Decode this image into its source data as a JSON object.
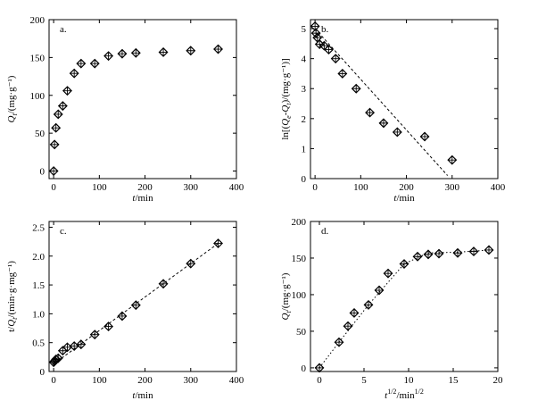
{
  "chart_data": [
    {
      "id": "a",
      "type": "scatter",
      "panel_label": "a.",
      "xlabel": "t/min",
      "ylabel": "Qt/(mg·g⁻¹)",
      "xlim": [
        -10,
        400
      ],
      "ylim": [
        -10,
        200
      ],
      "xticks": [
        0,
        100,
        200,
        300,
        400
      ],
      "yticks": [
        0,
        50,
        100,
        150,
        200
      ],
      "x": [
        0,
        2,
        5,
        10,
        20,
        30,
        45,
        60,
        90,
        120,
        150,
        180,
        240,
        300,
        360
      ],
      "y": [
        0,
        35,
        57,
        75,
        86,
        106,
        129,
        142,
        142,
        152,
        155,
        156,
        157,
        159,
        161
      ],
      "fit": null
    },
    {
      "id": "b",
      "type": "scatter",
      "panel_label": "b.",
      "xlabel": "t/min",
      "ylabel": "ln[(Qe-Qt)/(mg·g⁻¹)]",
      "xlim": [
        -10,
        400
      ],
      "ylim": [
        0,
        5.3
      ],
      "xticks": [
        0,
        100,
        200,
        300,
        400
      ],
      "yticks": [
        0,
        1,
        2,
        3,
        4,
        5
      ],
      "x": [
        0,
        2,
        5,
        10,
        20,
        30,
        45,
        60,
        90,
        120,
        150,
        180,
        240,
        300
      ],
      "y": [
        5.08,
        4.85,
        4.7,
        4.48,
        4.43,
        4.3,
        4.0,
        3.5,
        3.0,
        2.2,
        1.85,
        1.55,
        1.4,
        0.62
      ],
      "fit": {
        "style": "dashed",
        "x": [
          0,
          290
        ],
        "y": [
          5.0,
          0.1
        ]
      }
    },
    {
      "id": "c",
      "type": "scatter",
      "panel_label": "c.",
      "xlabel": "t/min",
      "ylabel": "t/Qt/(min·g·mg⁻¹)",
      "xlim": [
        -10,
        400
      ],
      "ylim": [
        0,
        2.6
      ],
      "xticks": [
        0,
        100,
        200,
        300,
        400
      ],
      "yticks": [
        0,
        0.5,
        1.0,
        1.5,
        2.0,
        2.5
      ],
      "ytick_labels": [
        "0",
        "0.5",
        "1.0",
        "1.5",
        "2.0",
        "2.5"
      ],
      "x": [
        0,
        2,
        5,
        10,
        20,
        30,
        45,
        60,
        90,
        120,
        150,
        180,
        240,
        300,
        360
      ],
      "y": [
        0.16,
        0.18,
        0.21,
        0.23,
        0.36,
        0.42,
        0.44,
        0.47,
        0.64,
        0.78,
        0.96,
        1.15,
        1.52,
        1.87,
        2.22
      ],
      "fit": {
        "style": "dashed",
        "x": [
          0,
          360
        ],
        "y": [
          0.13,
          2.22
        ]
      }
    },
    {
      "id": "d",
      "type": "scatter",
      "panel_label": "d.",
      "xlabel": "t1/2/min1/2",
      "ylabel": "Qt/(mg·g⁻¹)",
      "xlim": [
        -1,
        20
      ],
      "ylim": [
        -5,
        200
      ],
      "xticks": [
        0,
        5,
        10,
        15,
        20
      ],
      "yticks": [
        0,
        50,
        100,
        150,
        200
      ],
      "x": [
        0,
        2.2,
        3.2,
        3.9,
        5.5,
        6.7,
        7.7,
        9.5,
        11.0,
        12.2,
        13.4,
        15.5,
        17.3,
        19.0
      ],
      "y": [
        0,
        35,
        57,
        75,
        86,
        106,
        129,
        142,
        152,
        155,
        156,
        157,
        159,
        161
      ],
      "fit": {
        "style": "dotted",
        "x": [
          0,
          2.2,
          5.5,
          9.5,
          12.2,
          15.5,
          19.0
        ],
        "y": [
          0,
          35,
          86,
          142,
          157,
          158,
          161
        ]
      }
    }
  ]
}
